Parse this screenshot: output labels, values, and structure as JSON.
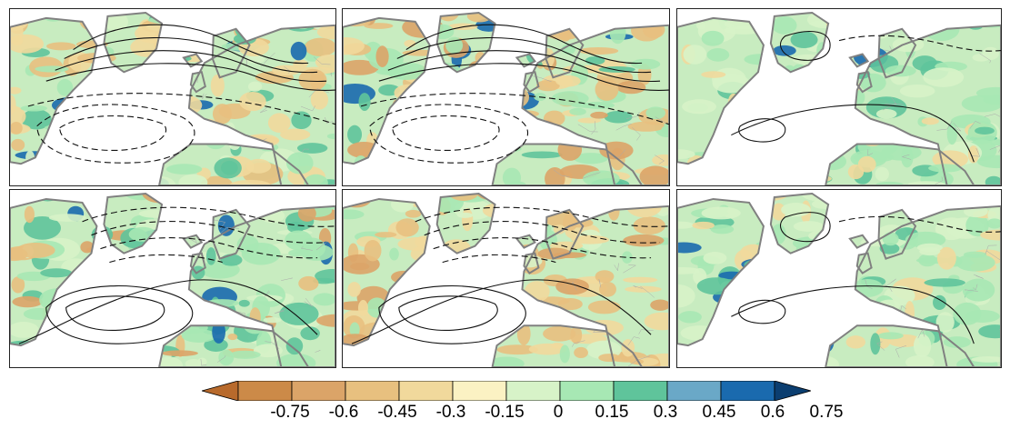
{
  "figure": {
    "rows": 2,
    "cols": 3
  },
  "colorbar": {
    "labels": [
      "-0.75",
      "-0.6",
      "-0.45",
      "-0.3",
      "-0.15",
      "0",
      "0.15",
      "0.3",
      "0.45",
      "0.6",
      "0.75"
    ],
    "colors": [
      "#b86a2c",
      "#cc8a48",
      "#dba468",
      "#e8c07f",
      "#f1d99c",
      "#fbf2c3",
      "#d7f3c8",
      "#a7e8b4",
      "#5fc49b",
      "#6aa8c7",
      "#1a6aae",
      "#0b3e70"
    ],
    "land_base_color": "#c8ecc0",
    "coast_color": "#808080",
    "contour_color": "#111111"
  },
  "panels": [
    {
      "id": "r1c1",
      "palette": [
        [
          "#f1d99c",
          0.25
        ],
        [
          "#e8c07f",
          0.15
        ],
        [
          "#a7e8b4",
          0.25
        ],
        [
          "#5fc49b",
          0.15
        ],
        [
          "#1a6aae",
          0.08
        ],
        [
          "#d7f3c8",
          0.12
        ]
      ],
      "contours": "dipole"
    },
    {
      "id": "r1c2",
      "palette": [
        [
          "#e8c07f",
          0.25
        ],
        [
          "#dba468",
          0.2
        ],
        [
          "#a7e8b4",
          0.2
        ],
        [
          "#5fc49b",
          0.1
        ],
        [
          "#1a6aae",
          0.05
        ],
        [
          "#f1d99c",
          0.2
        ]
      ],
      "contours": "dipole"
    },
    {
      "id": "r1c3",
      "palette": [
        [
          "#a7e8b4",
          0.35
        ],
        [
          "#d7f3c8",
          0.3
        ],
        [
          "#5fc49b",
          0.15
        ],
        [
          "#f1d99c",
          0.15
        ],
        [
          "#1a6aae",
          0.05
        ]
      ],
      "contours": "weak"
    },
    {
      "id": "r2c1",
      "palette": [
        [
          "#a7e8b4",
          0.3
        ],
        [
          "#5fc49b",
          0.2
        ],
        [
          "#e8c07f",
          0.15
        ],
        [
          "#dba468",
          0.1
        ],
        [
          "#1a6aae",
          0.05
        ],
        [
          "#d7f3c8",
          0.2
        ]
      ],
      "contours": "reverse"
    },
    {
      "id": "r2c2",
      "palette": [
        [
          "#e8c07f",
          0.3
        ],
        [
          "#f1d99c",
          0.25
        ],
        [
          "#dba468",
          0.15
        ],
        [
          "#a7e8b4",
          0.2
        ],
        [
          "#d7f3c8",
          0.1
        ]
      ],
      "contours": "reverse"
    },
    {
      "id": "r2c3",
      "palette": [
        [
          "#a7e8b4",
          0.35
        ],
        [
          "#d7f3c8",
          0.3
        ],
        [
          "#5fc49b",
          0.15
        ],
        [
          "#f1d99c",
          0.15
        ],
        [
          "#1a6aae",
          0.05
        ]
      ],
      "contours": "weak"
    }
  ]
}
